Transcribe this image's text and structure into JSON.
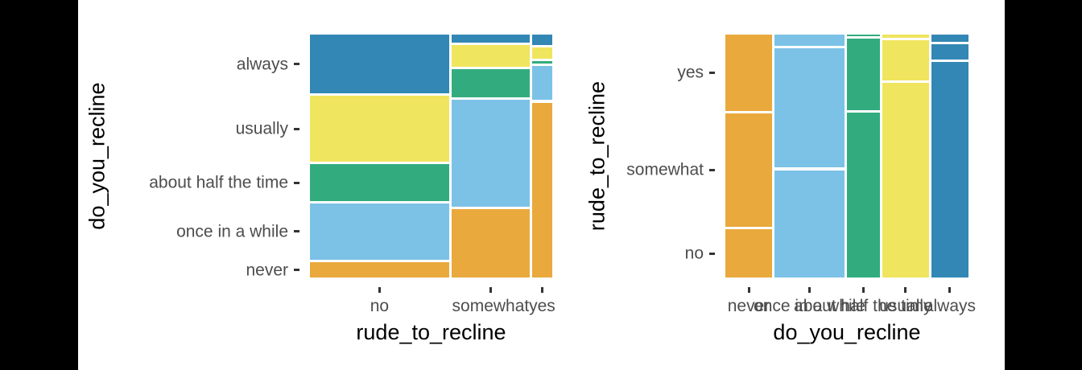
{
  "figure": {
    "description": "Two side-by-side mosaic plots of airline reclining survey responses"
  },
  "colors": {
    "background": "#ffffff",
    "letterbox": "#000000",
    "tick_label": "#4d4d4d",
    "axis_title": "#000000",
    "tick_mark": "#333333",
    "tile_gap": "#ffffff"
  },
  "palette": {
    "never": "#E9A93C",
    "once in a while": "#7CC2E7",
    "about half the time": "#32AC7F",
    "usually": "#F0E55E",
    "always": "#3287B4"
  },
  "chart_data": [
    {
      "type": "mosaic",
      "xlabel": "rude_to_recline",
      "ylabel": "do_you_recline",
      "fill_variable": "do_you_recline",
      "color_by": "y",
      "x_categories": [
        "no",
        "somewhat",
        "yes"
      ],
      "x_widths": [
        0.586,
        0.329,
        0.085
      ],
      "y_categories_top_to_bottom": [
        "always",
        "usually",
        "about half the time",
        "once in a while",
        "never"
      ],
      "segments_top_to_bottom": {
        "no": [
          0.253,
          0.283,
          0.156,
          0.243,
          0.065
        ],
        "somewhat": [
          0.036,
          0.092,
          0.121,
          0.459,
          0.292
        ],
        "yes": [
          0.044,
          0.048,
          0.011,
          0.147,
          0.75
        ]
      },
      "legend": "none",
      "grid": "off"
    },
    {
      "type": "mosaic",
      "xlabel": "do_you_recline",
      "ylabel": "rude_to_recline",
      "fill_variable": "do_you_recline",
      "color_by": "x",
      "x_categories": [
        "never",
        "once in a while",
        "about half the time",
        "usually",
        "always"
      ],
      "x_widths": [
        0.2,
        0.3,
        0.141,
        0.2,
        0.159
      ],
      "y_categories_top_to_bottom": [
        "yes",
        "somewhat",
        "no"
      ],
      "segments_top_to_bottom": {
        "never": [
          0.32,
          0.478,
          0.202
        ],
        "once in a while": [
          0.047,
          0.502,
          0.451
        ],
        "about half the time": [
          0.007,
          0.302,
          0.691
        ],
        "usually": [
          0.013,
          0.168,
          0.819
        ],
        "always": [
          0.029,
          0.064,
          0.907
        ]
      },
      "legend": "none",
      "grid": "off"
    }
  ]
}
